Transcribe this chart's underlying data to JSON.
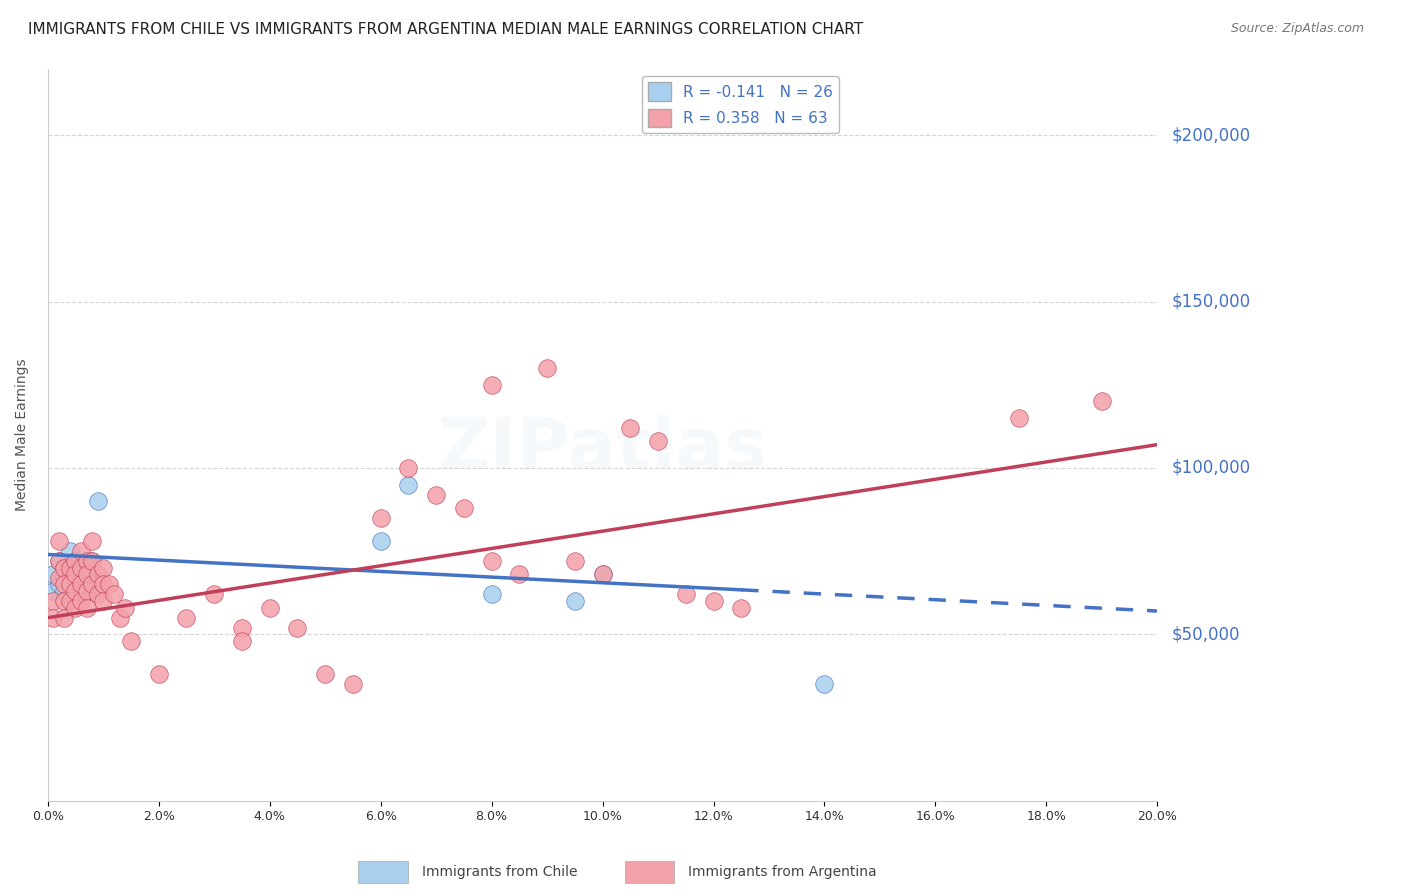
{
  "title": "IMMIGRANTS FROM CHILE VS IMMIGRANTS FROM ARGENTINA MEDIAN MALE EARNINGS CORRELATION CHART",
  "source": "Source: ZipAtlas.com",
  "ylabel": "Median Male Earnings",
  "watermark": "ZIPatlas",
  "legend_chile": "R = -0.141   N = 26",
  "legend_argentina": "R = 0.358   N = 63",
  "legend_label_chile": "Immigrants from Chile",
  "legend_label_argentina": "Immigrants from Argentina",
  "ytick_labels": [
    "$50,000",
    "$100,000",
    "$150,000",
    "$200,000"
  ],
  "ytick_values": [
    50000,
    100000,
    150000,
    200000
  ],
  "ymin": 0,
  "ymax": 220000,
  "xmin": 0.0,
  "xmax": 0.2,
  "color_chile": "#A8CFED",
  "color_argentina": "#F4A0A8",
  "color_chile_line": "#4472C4",
  "color_argentina_line": "#C0405A",
  "color_right_axis": "#4472C4",
  "background_color": "#FFFFFF",
  "grid_color": "#CCCCCC",
  "chile_scatter_x": [
    0.001,
    0.001,
    0.002,
    0.002,
    0.003,
    0.003,
    0.003,
    0.004,
    0.004,
    0.004,
    0.005,
    0.005,
    0.005,
    0.006,
    0.006,
    0.007,
    0.007,
    0.008,
    0.008,
    0.009,
    0.06,
    0.065,
    0.08,
    0.095,
    0.1,
    0.14
  ],
  "chile_scatter_y": [
    68000,
    63000,
    72000,
    65000,
    70000,
    67000,
    63000,
    75000,
    68000,
    64000,
    72000,
    67000,
    62000,
    70000,
    65000,
    68000,
    63000,
    72000,
    65000,
    90000,
    78000,
    95000,
    62000,
    60000,
    68000,
    35000
  ],
  "argentina_scatter_x": [
    0.001,
    0.001,
    0.002,
    0.002,
    0.002,
    0.003,
    0.003,
    0.003,
    0.003,
    0.004,
    0.004,
    0.004,
    0.005,
    0.005,
    0.005,
    0.005,
    0.006,
    0.006,
    0.006,
    0.006,
    0.007,
    0.007,
    0.007,
    0.007,
    0.008,
    0.008,
    0.008,
    0.009,
    0.009,
    0.01,
    0.01,
    0.01,
    0.011,
    0.012,
    0.013,
    0.014,
    0.015,
    0.02,
    0.025,
    0.03,
    0.035,
    0.035,
    0.04,
    0.045,
    0.05,
    0.055,
    0.06,
    0.065,
    0.07,
    0.075,
    0.08,
    0.08,
    0.085,
    0.09,
    0.095,
    0.1,
    0.105,
    0.11,
    0.115,
    0.12,
    0.125,
    0.175,
    0.19
  ],
  "argentina_scatter_y": [
    60000,
    55000,
    78000,
    72000,
    67000,
    70000,
    65000,
    60000,
    55000,
    70000,
    65000,
    60000,
    72000,
    68000,
    63000,
    58000,
    75000,
    70000,
    65000,
    60000,
    72000,
    68000,
    63000,
    58000,
    78000,
    72000,
    65000,
    68000,
    62000,
    70000,
    65000,
    60000,
    65000,
    62000,
    55000,
    58000,
    48000,
    38000,
    55000,
    62000,
    52000,
    48000,
    58000,
    52000,
    38000,
    35000,
    85000,
    100000,
    92000,
    88000,
    125000,
    72000,
    68000,
    130000,
    72000,
    68000,
    112000,
    108000,
    62000,
    60000,
    58000,
    115000,
    120000
  ],
  "chile_trend_x": [
    0.0,
    0.2
  ],
  "chile_trend_y": [
    74000,
    57000
  ],
  "argentina_trend_x": [
    0.0,
    0.2
  ],
  "argentina_trend_y": [
    55000,
    107000
  ],
  "chile_line_solid_end": 0.125,
  "title_fontsize": 11,
  "source_fontsize": 9,
  "axis_label_fontsize": 10,
  "tick_fontsize": 9,
  "legend_fontsize": 11,
  "watermark_fontsize": 52,
  "watermark_alpha": 0.1,
  "watermark_color": "#B0C8DC"
}
